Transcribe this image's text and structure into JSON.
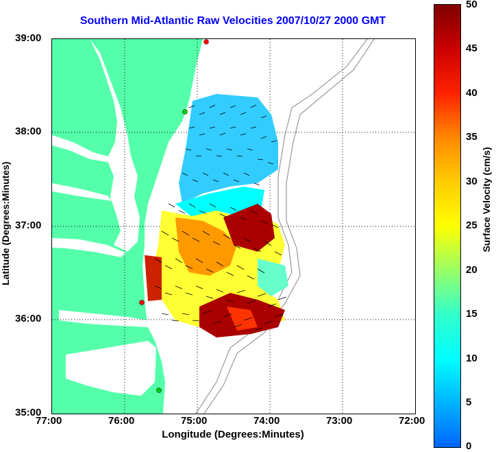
{
  "title": "Southern Mid-Atlantic Raw Velocities 2007/10/27 2000 GMT",
  "x_axis": {
    "label": "Longitude (Degrees:Minutes)",
    "ticks": [
      "77:00",
      "76:00",
      "75:00",
      "74:00",
      "73:00",
      "72:00"
    ]
  },
  "y_axis": {
    "label": "Latitude (Degrees:Minutes)",
    "ticks": [
      "39:00",
      "38:00",
      "37:00",
      "36:00",
      "35:00"
    ]
  },
  "colorbar": {
    "label": "Surface Velocity (cm/s)",
    "ticks": [
      "50",
      "45",
      "40",
      "35",
      "30",
      "25",
      "20",
      "15",
      "10",
      "5",
      "0"
    ],
    "range": [
      0,
      50
    ],
    "colors": [
      "#0066ff",
      "#00ffff",
      "#99ff66",
      "#ffff00",
      "#ff8800",
      "#ff2200",
      "#800000"
    ]
  },
  "map": {
    "land_color": "#55ffaa",
    "water_color": "#ffffff",
    "station_colors": [
      "#ff0000",
      "#00cc00"
    ]
  }
}
